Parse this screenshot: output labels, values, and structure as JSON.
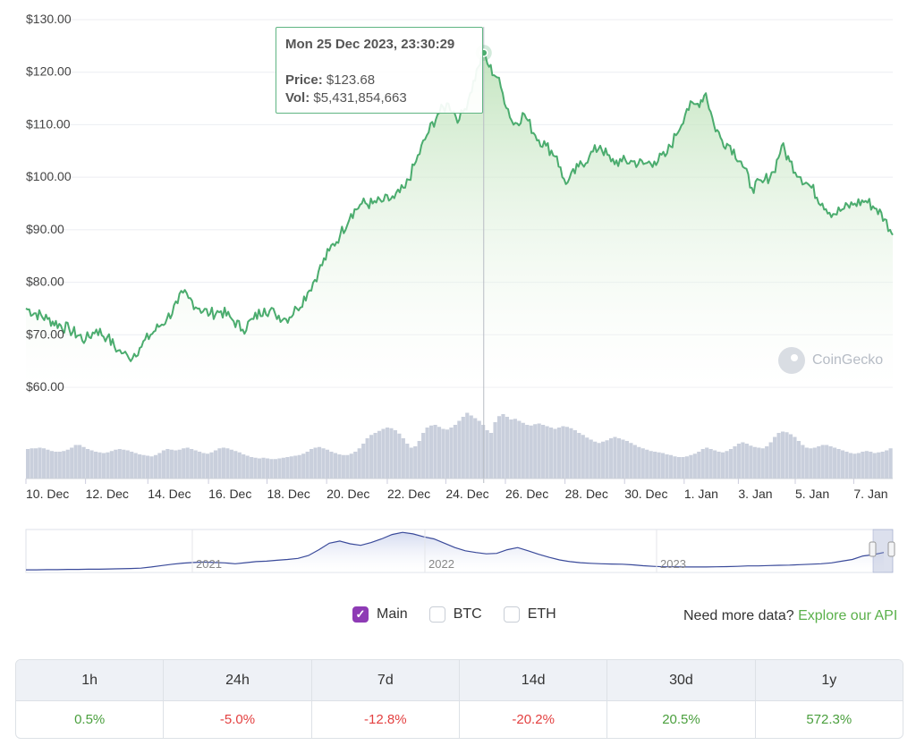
{
  "chart_data": {
    "type": "line",
    "y_axis": {
      "ticks": [
        "$130.00",
        "$120.00",
        "$110.00",
        "$100.00",
        "$90.00",
        "$80.00",
        "$70.00",
        "$60.00"
      ],
      "ylim": [
        60,
        130
      ]
    },
    "x_axis": {
      "ticks": [
        "10. Dec",
        "12. Dec",
        "14. Dec",
        "16. Dec",
        "18. Dec",
        "20. Dec",
        "22. Dec",
        "24. Dec",
        "26. Dec",
        "28. Dec",
        "30. Dec",
        "1. Jan",
        "3. Jan",
        "5. Jan",
        "7. Jan"
      ]
    },
    "price_points": [
      [
        0,
        75
      ],
      [
        4,
        73
      ],
      [
        8,
        71
      ],
      [
        11,
        69
      ],
      [
        13,
        71
      ],
      [
        15,
        69.5
      ],
      [
        17,
        67
      ],
      [
        18,
        66.5
      ],
      [
        19,
        65.5
      ],
      [
        21,
        67.5
      ],
      [
        23,
        70
      ],
      [
        24.5,
        71.5
      ],
      [
        26,
        73
      ],
      [
        28,
        76
      ],
      [
        29,
        78
      ],
      [
        30,
        77
      ],
      [
        32,
        75
      ],
      [
        34,
        74
      ],
      [
        36,
        74.5
      ],
      [
        38,
        73
      ],
      [
        40,
        71
      ],
      [
        42,
        73
      ],
      [
        44,
        75
      ],
      [
        46,
        74
      ],
      [
        48,
        73
      ],
      [
        50,
        75
      ],
      [
        52,
        78
      ],
      [
        54,
        82
      ],
      [
        56,
        86
      ],
      [
        58,
        89
      ],
      [
        60,
        93
      ],
      [
        62,
        95
      ],
      [
        64,
        95
      ],
      [
        66,
        95.5
      ],
      [
        68,
        96
      ],
      [
        70,
        98
      ],
      [
        72,
        103
      ],
      [
        74,
        108
      ],
      [
        76,
        112
      ],
      [
        78,
        114
      ],
      [
        80,
        111
      ],
      [
        81,
        113
      ],
      [
        82,
        116
      ],
      [
        83.5,
        121
      ],
      [
        84.5,
        123.68
      ],
      [
        85.5,
        121
      ],
      [
        87,
        119
      ],
      [
        88,
        116
      ],
      [
        90,
        110
      ],
      [
        92,
        112
      ],
      [
        94,
        108
      ],
      [
        96,
        106
      ],
      [
        98,
        104
      ],
      [
        99,
        100
      ],
      [
        100,
        99
      ],
      [
        102,
        102
      ],
      [
        104,
        104
      ],
      [
        106,
        106
      ],
      [
        108,
        103
      ],
      [
        110,
        103
      ],
      [
        112,
        103
      ],
      [
        114,
        102.5
      ],
      [
        116,
        103
      ],
      [
        118,
        104
      ],
      [
        120,
        108
      ],
      [
        122,
        113
      ],
      [
        124,
        114
      ],
      [
        125.5,
        116
      ],
      [
        127,
        110
      ],
      [
        128.5,
        107
      ],
      [
        130,
        106
      ],
      [
        132,
        103
      ],
      [
        134,
        98
      ],
      [
        136,
        99
      ],
      [
        138,
        101
      ],
      [
        139.5,
        106
      ],
      [
        141,
        103
      ],
      [
        143,
        100
      ],
      [
        145,
        98
      ],
      [
        147,
        95
      ],
      [
        149,
        93
      ],
      [
        151,
        94
      ],
      [
        153,
        95
      ],
      [
        155,
        95.5
      ],
      [
        157,
        94
      ],
      [
        158.5,
        92
      ],
      [
        159.5,
        90
      ],
      [
        160,
        89
      ]
    ],
    "volume": [
      4.4,
      4.5,
      4.5,
      4.6,
      4.5,
      4.3,
      4.1,
      4.0,
      4.0,
      4.1,
      4.3,
      4.6,
      5.0,
      5.0,
      4.7,
      4.4,
      4.2,
      4.0,
      3.9,
      3.8,
      3.9,
      4.1,
      4.3,
      4.4,
      4.3,
      4.2,
      4.0,
      3.8,
      3.6,
      3.5,
      3.4,
      3.3,
      3.5,
      3.8,
      4.2,
      4.4,
      4.3,
      4.2,
      4.3,
      4.5,
      4.6,
      4.4,
      4.2,
      4.0,
      3.8,
      3.7,
      3.9,
      4.2,
      4.5,
      4.6,
      4.5,
      4.3,
      4.1,
      3.9,
      3.6,
      3.4,
      3.2,
      3.1,
      3.0,
      3.1,
      3.0,
      2.9,
      2.9,
      3.0,
      3.1,
      3.2,
      3.3,
      3.4,
      3.5,
      3.7,
      4.0,
      4.4,
      4.6,
      4.7,
      4.5,
      4.3,
      4.0,
      3.8,
      3.6,
      3.5,
      3.5,
      3.7,
      4.0,
      4.5,
      5.2,
      6.0,
      6.5,
      6.8,
      7.1,
      7.4,
      7.6,
      7.5,
      7.2,
      6.7,
      6.0,
      5.2,
      4.6,
      4.8,
      5.6,
      6.8,
      7.6,
      7.9,
      8.0,
      7.7,
      7.4,
      7.3,
      7.6,
      8.0,
      8.6,
      9.2,
      9.8,
      9.4,
      9.0,
      8.6,
      8.0,
      7.2,
      6.8,
      8.4,
      9.3,
      9.6,
      9.2,
      8.8,
      8.9,
      8.6,
      8.3,
      8.0,
      7.9,
      8.1,
      8.2,
      8.0,
      7.8,
      7.6,
      7.4,
      7.6,
      7.8,
      7.7,
      7.5,
      7.2,
      6.8,
      6.5,
      6.1,
      5.8,
      5.5,
      5.3,
      5.5,
      5.7,
      6.0,
      6.2,
      6.0,
      5.8,
      5.6,
      5.3,
      5.0,
      4.7,
      4.5,
      4.3,
      4.1,
      4.0,
      3.9,
      3.8,
      3.6,
      3.5,
      3.3,
      3.2,
      3.2,
      3.3,
      3.5,
      3.7,
      4.0,
      4.4,
      4.6,
      4.4,
      4.2,
      4.0,
      3.9,
      4.1,
      4.4,
      4.8,
      5.2,
      5.4,
      5.2,
      4.9,
      4.7,
      4.6,
      4.5,
      4.8,
      5.4,
      6.2,
      6.8,
      7.0,
      6.9,
      6.6,
      6.2,
      5.6,
      5.0,
      4.6,
      4.5,
      4.6,
      4.8,
      5.0,
      5.0,
      4.8,
      4.6,
      4.4,
      4.2,
      4.0,
      3.8,
      3.7,
      3.8,
      4.0,
      4.1,
      4.0,
      3.8,
      3.9,
      4.0,
      4.2,
      4.5
    ],
    "navigator": {
      "ticks": [
        "2021",
        "2022",
        "2023"
      ],
      "line": [
        1.2,
        1.2,
        1.3,
        1.3,
        1.4,
        1.4,
        1.5,
        1.5,
        1.6,
        1.7,
        1.8,
        2.0,
        2.5,
        3.2,
        3.8,
        4.3,
        4.6,
        4.8,
        4.6,
        4.4,
        4.0,
        4.5,
        5.0,
        5.2,
        5.6,
        6.0,
        6.5,
        7.8,
        10.5,
        13.5,
        14.5,
        13.2,
        12.5,
        13.8,
        15.5,
        17.5,
        18.5,
        17.8,
        16.5,
        15.5,
        13.5,
        11.5,
        10.0,
        9.2,
        8.6,
        8.8,
        10.5,
        11.5,
        10.0,
        8.4,
        7.0,
        5.8,
        5.0,
        4.5,
        4.2,
        4.0,
        3.9,
        3.8,
        3.5,
        3.1,
        2.8,
        2.6,
        2.6,
        2.5,
        2.5,
        2.5,
        2.6,
        2.7,
        2.8,
        3.0,
        3.0,
        3.2,
        3.3,
        3.4,
        3.6,
        3.8,
        4.0,
        4.4,
        5.2,
        6.0,
        7.6,
        8.2,
        9.2
      ]
    }
  },
  "tooltip": {
    "title": "Mon 25 Dec 2023, 23:30:29",
    "price_label": "Price:",
    "price_value": "$123.68",
    "vol_label": "Vol:",
    "vol_value": "$5,431,854,663"
  },
  "watermark": "CoinGecko",
  "toggles": [
    {
      "label": "Main",
      "checked": true
    },
    {
      "label": "BTC",
      "checked": false
    },
    {
      "label": "ETH",
      "checked": false
    }
  ],
  "more_data": {
    "text": "Need more data?",
    "link": "Explore our API"
  },
  "performance": {
    "headers": [
      "1h",
      "24h",
      "7d",
      "14d",
      "30d",
      "1y"
    ],
    "values": [
      "0.5%",
      "-5.0%",
      "-12.8%",
      "-20.2%",
      "20.5%",
      "572.3%"
    ]
  },
  "colors": {
    "line": "#4bac6e",
    "fill_top": "#b9e0b4",
    "fill_bottom": "#ffffff",
    "volume": "#c9cfdc",
    "navigator": "#3a4a9a",
    "accent_check": "#8e3bb5"
  }
}
